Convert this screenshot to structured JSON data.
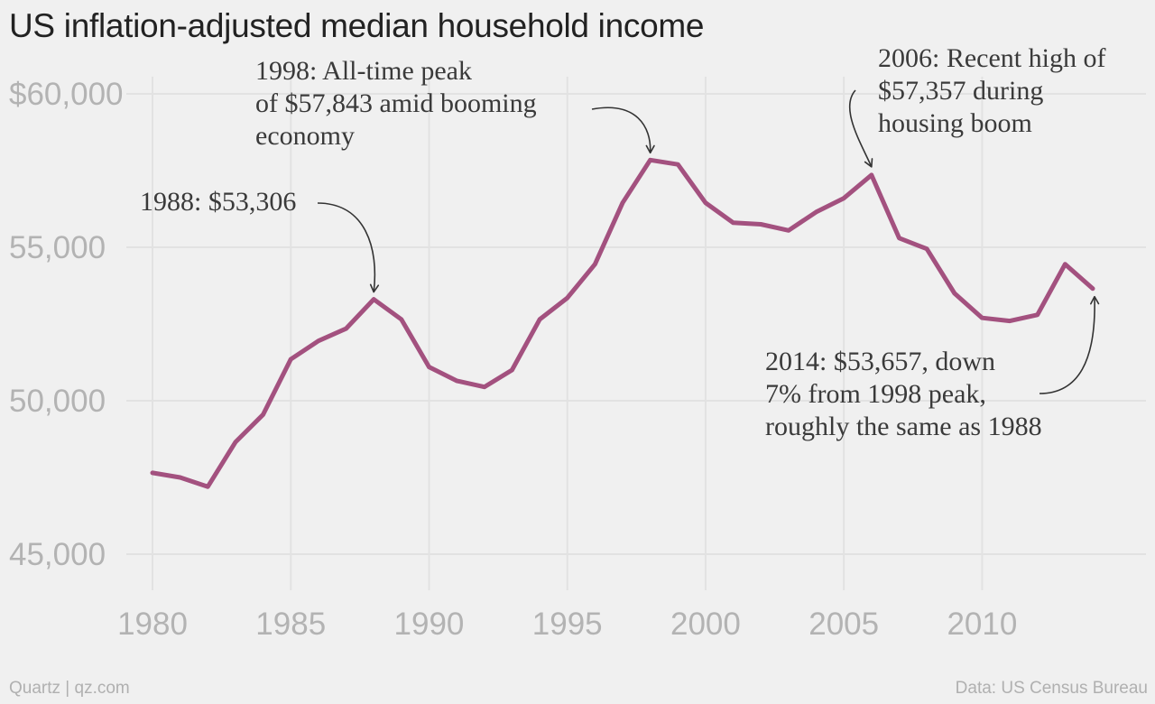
{
  "colors": {
    "background": "#f0f0f0",
    "line": "#a3517f",
    "grid": "#e2e2e2",
    "tick_text": "#b3b3b3",
    "title_text": "#222222",
    "annotation_text": "#3a3a3a",
    "footer_text": "#b0b0b0"
  },
  "footer": {
    "source_left": "Quartz | qz.com",
    "source_right": "Data: US Census Bureau"
  },
  "chart_data": {
    "type": "line",
    "title": "US inflation-adjusted median household income",
    "xlabel": "",
    "ylabel": "",
    "xlim": [
      1980,
      2014
    ],
    "ylim": [
      45000,
      60000
    ],
    "grid": true,
    "legend": "none",
    "x_ticks": [
      1980,
      1985,
      1990,
      1995,
      2000,
      2005,
      2010
    ],
    "x_tick_labels": [
      "1980",
      "1985",
      "1990",
      "1995",
      "2000",
      "2005",
      "2010"
    ],
    "y_ticks": [
      45000,
      50000,
      55000,
      60000
    ],
    "y_tick_labels": [
      "45,000",
      "50,000",
      "55,000",
      "$60,000"
    ],
    "series": [
      {
        "x": [
          1980,
          1981,
          1982,
          1983,
          1984,
          1985,
          1986,
          1987,
          1988,
          1989,
          1990,
          1991,
          1992,
          1993,
          1994,
          1995,
          1996,
          1997,
          1998,
          1999,
          2000,
          2001,
          2002,
          2003,
          2004,
          2005,
          2006,
          2007,
          2008,
          2009,
          2010,
          2011,
          2012,
          2013,
          2014
        ],
        "values": [
          47650,
          47500,
          47200,
          48650,
          49550,
          51350,
          51950,
          52350,
          53306,
          52650,
          51100,
          50650,
          50450,
          51000,
          52650,
          53350,
          54450,
          56450,
          57843,
          57700,
          56450,
          55800,
          55750,
          55550,
          56150,
          56600,
          57357,
          55300,
          54950,
          53500,
          52700,
          52600,
          52800,
          54450,
          53657
        ]
      }
    ],
    "annotations": [
      {
        "lines": [
          "1988: $53,306"
        ],
        "x": 1988,
        "y": 53306
      },
      {
        "lines": [
          "1998: All-time peak",
          "of $57,843 amid booming",
          "economy"
        ],
        "x": 1998,
        "y": 57843
      },
      {
        "lines": [
          "2006: Recent high of",
          "$57,357 during",
          "housing boom"
        ],
        "x": 2006,
        "y": 57357
      },
      {
        "lines": [
          "2014: $53,657, down",
          "7% from 1998 peak,",
          "roughly the same as 1988"
        ],
        "x": 2014,
        "y": 53657
      }
    ]
  }
}
